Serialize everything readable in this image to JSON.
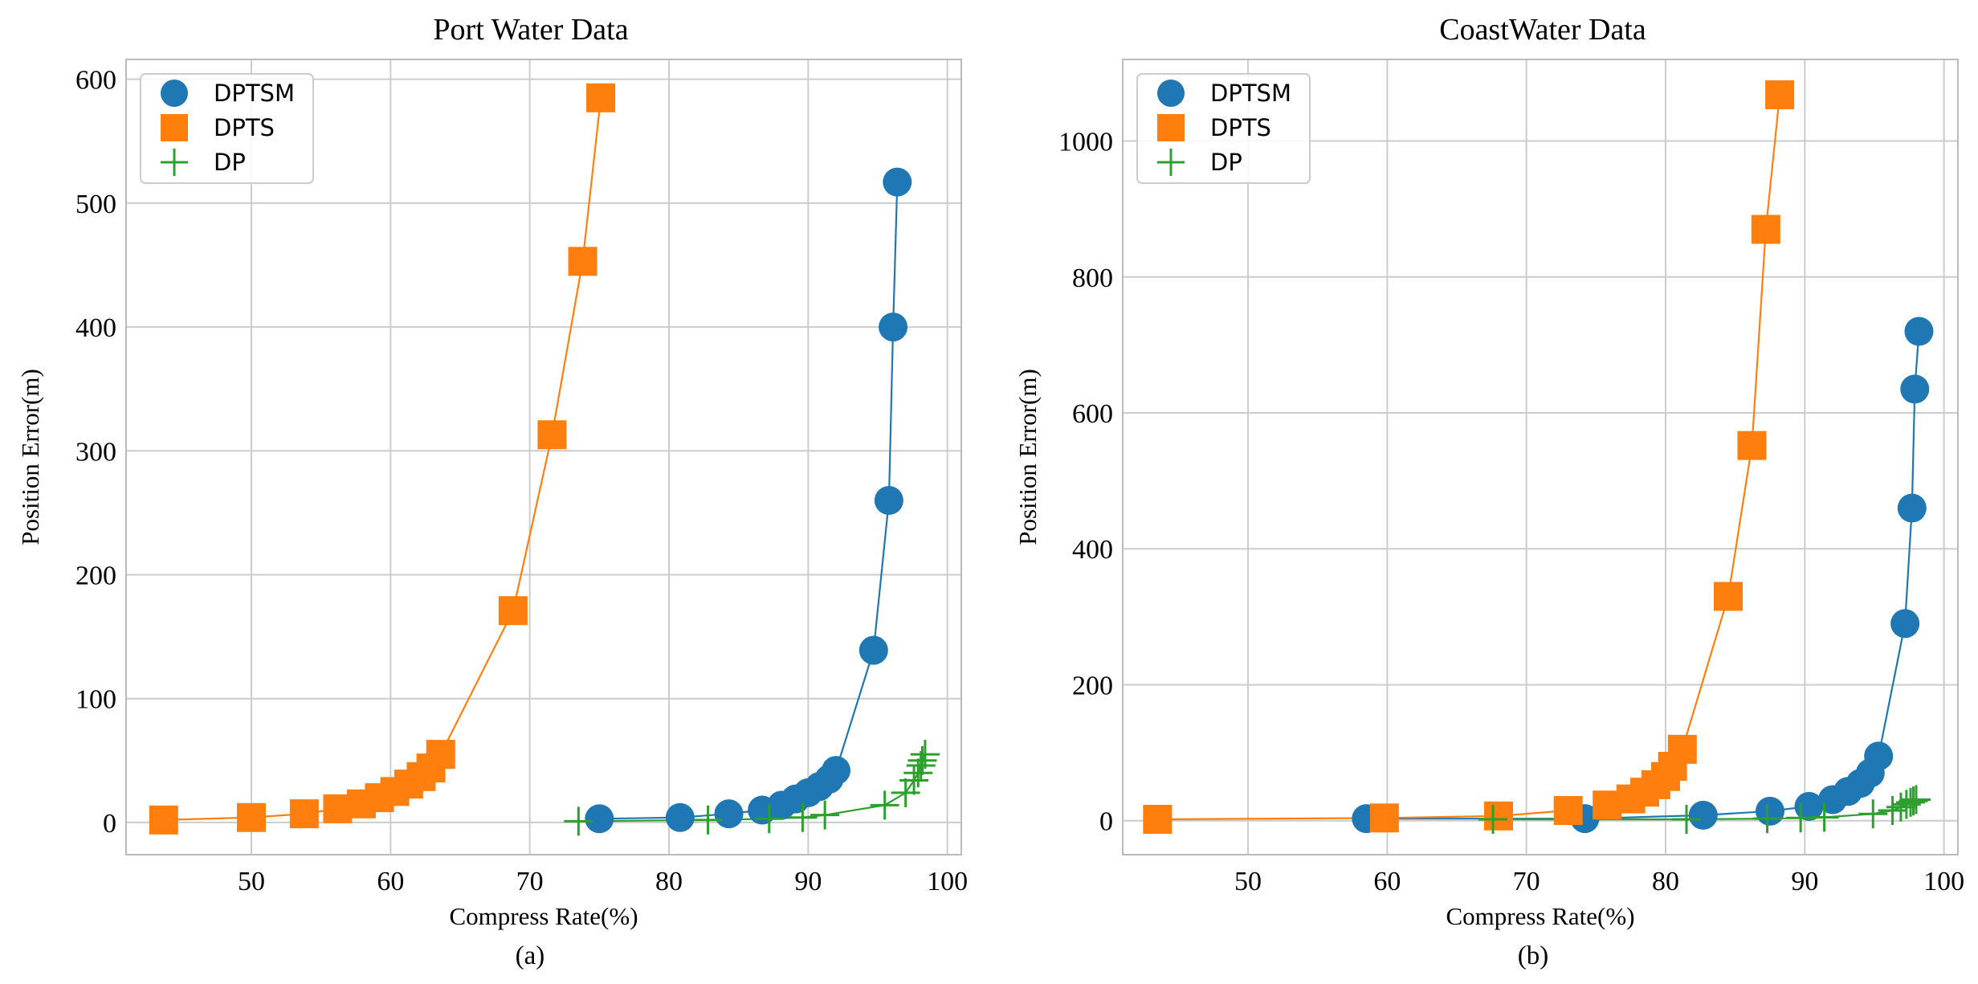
{
  "colors": {
    "dptsm": "#1f77b4",
    "dpts": "#ff7f0e",
    "dp": "#2ca02c",
    "grid": "#cccccc",
    "axis": "#bbbbbb",
    "text": "#000000"
  },
  "chart_data": [
    {
      "type": "scatter",
      "title": "Port Water Data",
      "xlabel": "Compress Rate(%)",
      "ylabel": "Position Error(m)",
      "caption": "(a)",
      "xlim": [
        41,
        101
      ],
      "ylim": [
        -26,
        616
      ],
      "xticks": [
        50,
        60,
        70,
        80,
        90,
        100
      ],
      "xtick_labels": [
        "50",
        "60",
        "70",
        "80",
        "90",
        "100"
      ],
      "yticks": [
        0,
        100,
        200,
        300,
        400,
        500,
        600
      ],
      "ytick_labels": [
        "0",
        "100",
        "200",
        "300",
        "400",
        "500",
        "600"
      ],
      "grid": true,
      "legend_position": "top-left",
      "series": [
        {
          "name": "DPTSM",
          "marker": "circle",
          "x": [
            75,
            80.8,
            84.3,
            86.7,
            88.1,
            89.1,
            90,
            90.8,
            91.5,
            92,
            94.7,
            95.8,
            96.1,
            96.4
          ],
          "y": [
            3,
            4,
            7,
            10,
            14,
            19,
            24,
            29,
            35,
            42,
            139,
            260,
            400,
            517
          ]
        },
        {
          "name": "DPTS",
          "marker": "square",
          "x": [
            43.7,
            50,
            53.8,
            56.2,
            57.9,
            59.2,
            60.3,
            61.3,
            62.2,
            62.9,
            63.6,
            68.8,
            71.6,
            73.8,
            75.1
          ],
          "y": [
            2,
            4,
            7,
            11,
            15,
            20,
            25,
            31,
            37,
            44,
            55,
            171,
            313,
            453,
            585
          ]
        },
        {
          "name": "DP",
          "marker": "plus",
          "x": [
            73.5,
            82.8,
            87.2,
            89.6,
            91.2,
            95.5,
            97,
            97.6,
            97.9,
            98.1,
            98.2,
            98.4
          ],
          "y": [
            1,
            2,
            3,
            4,
            6,
            14,
            24,
            34,
            40,
            46,
            50,
            55
          ]
        }
      ]
    },
    {
      "type": "scatter",
      "title": "CoastWater Data",
      "xlabel": "Compress Rate(%)",
      "ylabel": "Position Error(m)",
      "caption": "(b)",
      "xlim": [
        41,
        101
      ],
      "ylim": [
        -50,
        1120
      ],
      "xticks": [
        50,
        60,
        70,
        80,
        90,
        100
      ],
      "xtick_labels": [
        "50",
        "60",
        "70",
        "80",
        "90",
        "100"
      ],
      "yticks": [
        0,
        200,
        400,
        600,
        800,
        1000
      ],
      "ytick_labels": [
        "0",
        "200",
        "400",
        "600",
        "800",
        "1000"
      ],
      "grid": true,
      "legend_position": "top-left",
      "series": [
        {
          "name": "DPTSM",
          "marker": "circle",
          "x": [
            58.5,
            74.2,
            82.7,
            87.5,
            90.3,
            92,
            93.1,
            94,
            94.7,
            95.3,
            97.2,
            97.7,
            97.9,
            98.2
          ],
          "y": [
            3,
            3,
            8,
            14,
            21,
            31,
            43,
            55,
            70,
            95,
            290,
            460,
            635,
            720
          ]
        },
        {
          "name": "DPTS",
          "marker": "square",
          "x": [
            43.5,
            59.8,
            68,
            73,
            75.8,
            77.5,
            78.5,
            79.3,
            80,
            80.5,
            81.2,
            84.5,
            86.2,
            87.2,
            88.2
          ],
          "y": [
            2,
            4,
            7,
            15,
            23,
            32,
            42,
            53,
            65,
            80,
            105,
            330,
            552,
            870,
            1068
          ]
        },
        {
          "name": "DP",
          "marker": "plus",
          "x": [
            67.6,
            81.5,
            87.3,
            89.7,
            91.4,
            94.9,
            96.3,
            96.9,
            97.3,
            97.6,
            97.8,
            98
          ],
          "y": [
            2,
            2,
            3,
            4,
            5,
            10,
            15,
            20,
            24,
            27,
            29,
            31
          ]
        }
      ]
    }
  ]
}
